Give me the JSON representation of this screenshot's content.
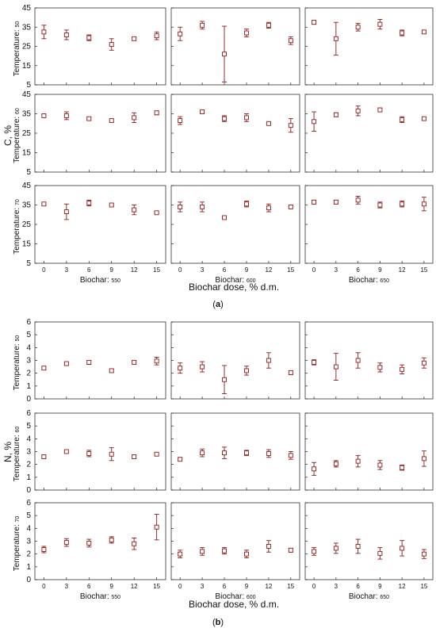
{
  "style": {
    "marker_color": "#8b1a1a",
    "axis_color": "#222222",
    "frame_color": "#333333"
  },
  "chart_data": [
    {
      "type": "scatter",
      "panel_label": "(a)",
      "ylabel": "C, %",
      "xlabel": "Biochar dose, % d.m.",
      "x_ticks": [
        0,
        3,
        6,
        9,
        12,
        15
      ],
      "ylim": [
        5,
        45
      ],
      "y_ticks": [
        5,
        15,
        25,
        35,
        45
      ],
      "row_labels": [
        "Temperature: 50",
        "Temperature: 60",
        "Temperature: 70"
      ],
      "col_labels": [
        "Biochar: 550",
        "Biochar: 600",
        "Biochar: 650"
      ],
      "grid": false,
      "error_bars": true,
      "cells": [
        [
          {
            "y": [
              32.5,
              31.0,
              29.5,
              26.0,
              29.0,
              30.5
            ],
            "err": [
              3.5,
              2.5,
              1.5,
              3.0,
              0.5,
              2.0
            ]
          },
          {
            "y": [
              31.5,
              36.0,
              21.0,
              32.0,
              36.0,
              28.0
            ],
            "err": [
              3.5,
              2.0,
              14.5,
              2.0,
              1.5,
              2.0
            ]
          },
          {
            "y": [
              37.5,
              29.0,
              35.0,
              36.5,
              32.0,
              32.5
            ],
            "err": [
              1.0,
              8.5,
              2.0,
              2.5,
              1.5,
              0.5
            ]
          }
        ],
        [
          {
            "y": [
              34.0,
              34.0,
              32.5,
              31.5,
              33.0,
              35.5
            ],
            "err": [
              0.5,
              2.0,
              0.5,
              0.5,
              2.5,
              1.0
            ]
          },
          {
            "y": [
              31.5,
              36.0,
              32.5,
              33.0,
              30.0,
              29.0
            ],
            "err": [
              2.0,
              0.5,
              1.5,
              2.0,
              0.5,
              3.5
            ]
          },
          {
            "y": [
              31.0,
              34.5,
              36.5,
              37.0,
              32.0,
              32.5
            ],
            "err": [
              5.0,
              1.0,
              2.5,
              1.0,
              1.5,
              0.5
            ]
          }
        ],
        [
          {
            "y": [
              35.5,
              31.5,
              36.0,
              35.0,
              32.5,
              31.0
            ],
            "err": [
              0.5,
              4.0,
              1.5,
              0.5,
              2.5,
              0.5
            ]
          },
          {
            "y": [
              34.0,
              34.0,
              28.5,
              35.5,
              33.5,
              34.0
            ],
            "err": [
              2.5,
              2.5,
              0.5,
              1.5,
              2.0,
              0.5
            ]
          },
          {
            "y": [
              36.5,
              36.5,
              37.5,
              35.0,
              35.5,
              35.5
            ],
            "err": [
              1.0,
              1.0,
              2.0,
              1.5,
              1.5,
              3.5
            ]
          }
        ]
      ]
    },
    {
      "type": "scatter",
      "panel_label": "(b)",
      "ylabel": "N, %",
      "xlabel": "Biochar dose, % d.m.",
      "x_ticks": [
        0,
        3,
        6,
        9,
        12,
        15
      ],
      "ylim": [
        0,
        6
      ],
      "y_ticks": [
        0,
        1,
        2,
        3,
        4,
        5,
        6
      ],
      "row_labels": [
        "Temperature: 50",
        "Temperature: 60",
        "Temperature: 70"
      ],
      "col_labels": [
        "Biochar: 550",
        "Biochar: 600",
        "Biochar: 650"
      ],
      "grid": false,
      "error_bars": true,
      "cells": [
        [
          {
            "y": [
              2.4,
              2.75,
              2.85,
              2.2,
              2.85,
              2.95
            ],
            "err": [
              0.1,
              0.1,
              0.15,
              0.1,
              0.1,
              0.3
            ]
          },
          {
            "y": [
              2.4,
              2.5,
              1.5,
              2.2,
              3.0,
              2.05
            ],
            "err": [
              0.4,
              0.4,
              1.1,
              0.35,
              0.6,
              0.15
            ]
          },
          {
            "y": [
              2.85,
              2.5,
              3.0,
              2.45,
              2.3,
              2.8
            ],
            "err": [
              0.2,
              1.05,
              0.6,
              0.35,
              0.35,
              0.4
            ]
          }
        ],
        [
          {
            "y": [
              2.6,
              3.0,
              2.85,
              2.8,
              2.6,
              2.8
            ],
            "err": [
              0.1,
              0.1,
              0.25,
              0.5,
              0.1,
              0.1
            ]
          },
          {
            "y": [
              2.4,
              2.9,
              2.9,
              2.9,
              2.85,
              2.7
            ],
            "err": [
              0.1,
              0.3,
              0.45,
              0.2,
              0.3,
              0.3
            ]
          },
          {
            "y": [
              1.65,
              2.05,
              2.25,
              1.95,
              1.75,
              2.45
            ],
            "err": [
              0.5,
              0.25,
              0.45,
              0.35,
              0.2,
              0.6
            ]
          }
        ],
        [
          {
            "y": [
              2.35,
              2.9,
              2.85,
              3.1,
              2.8,
              4.1
            ],
            "err": [
              0.25,
              0.3,
              0.3,
              0.25,
              0.45,
              1.0
            ]
          },
          {
            "y": [
              2.0,
              2.2,
              2.25,
              2.0,
              2.6,
              2.3
            ],
            "err": [
              0.3,
              0.3,
              0.25,
              0.3,
              0.45,
              0.15
            ]
          },
          {
            "y": [
              2.2,
              2.45,
              2.6,
              2.05,
              2.45,
              2.0
            ],
            "err": [
              0.3,
              0.4,
              0.55,
              0.45,
              0.6,
              0.35
            ]
          }
        ]
      ]
    }
  ]
}
